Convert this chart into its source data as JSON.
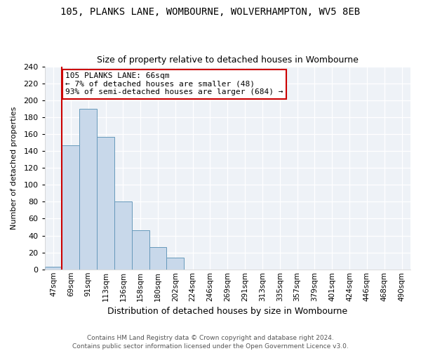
{
  "title": "105, PLANKS LANE, WOMBOURNE, WOLVERHAMPTON, WV5 8EB",
  "subtitle": "Size of property relative to detached houses in Wombourne",
  "xlabel": "Distribution of detached houses by size in Wombourne",
  "ylabel": "Number of detached properties",
  "footer_line1": "Contains HM Land Registry data © Crown copyright and database right 2024.",
  "footer_line2": "Contains public sector information licensed under the Open Government Licence v3.0.",
  "annotation_line1": "105 PLANKS LANE: 66sqm",
  "annotation_line2": "← 7% of detached houses are smaller (48)",
  "annotation_line3": "93% of semi-detached houses are larger (684) →",
  "bar_color": "#c8d8ea",
  "bar_edge_color": "#6699bb",
  "annotation_box_color": "#ffffff",
  "annotation_box_edge_color": "#cc0000",
  "vline_color": "#cc0000",
  "categories": [
    "47sqm",
    "69sqm",
    "91sqm",
    "113sqm",
    "136sqm",
    "158sqm",
    "180sqm",
    "202sqm",
    "224sqm",
    "246sqm",
    "269sqm",
    "291sqm",
    "313sqm",
    "335sqm",
    "357sqm",
    "379sqm",
    "401sqm",
    "424sqm",
    "446sqm",
    "468sqm",
    "490sqm"
  ],
  "values": [
    3,
    147,
    190,
    157,
    80,
    46,
    26,
    14,
    0,
    0,
    0,
    0,
    0,
    0,
    0,
    0,
    0,
    0,
    0,
    0,
    0
  ],
  "ylim": [
    0,
    240
  ],
  "yticks": [
    0,
    20,
    40,
    60,
    80,
    100,
    120,
    140,
    160,
    180,
    200,
    220,
    240
  ],
  "vline_x_index": 0.5,
  "figsize": [
    6.0,
    5.0
  ],
  "dpi": 100
}
